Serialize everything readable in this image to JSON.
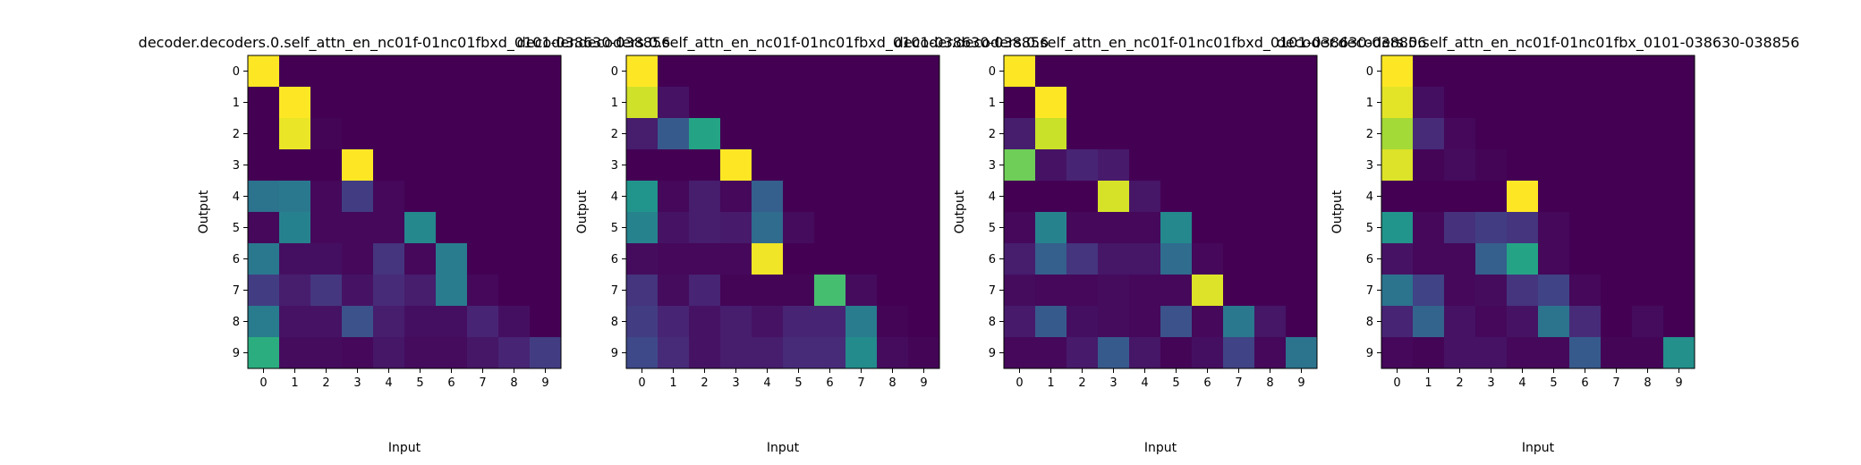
{
  "figure": {
    "colormap": "viridis",
    "colorscale": [
      "#440154",
      "#482878",
      "#3e4a89",
      "#31688e",
      "#26828e",
      "#1f9e89",
      "#35b779",
      "#6ece58",
      "#b5de2b",
      "#fde725"
    ],
    "xlabel": "Input",
    "ylabel": "Output"
  },
  "chart_data": [
    {
      "type": "heatmap",
      "title": "decoder.decoders.0.self_attn_en_nc01f-01nc01fbxd_0101-038630-038856",
      "xlabel": "Input",
      "ylabel": "Output",
      "x_ticks": [
        "0",
        "1",
        "2",
        "3",
        "4",
        "5",
        "6",
        "7",
        "8",
        "9"
      ],
      "y_ticks": [
        "0",
        "1",
        "2",
        "3",
        "4",
        "5",
        "6",
        "7",
        "8",
        "9"
      ],
      "values": [
        [
          1.0,
          0,
          0,
          0,
          0,
          0,
          0,
          0,
          0,
          0
        ],
        [
          0.0,
          1.0,
          0,
          0,
          0,
          0,
          0,
          0,
          0,
          0
        ],
        [
          0.0,
          0.97,
          0.01,
          0,
          0,
          0,
          0,
          0,
          0,
          0
        ],
        [
          0.0,
          0.0,
          0.0,
          1.0,
          0,
          0,
          0,
          0,
          0,
          0
        ],
        [
          0.38,
          0.4,
          0.02,
          0.18,
          0.02,
          0,
          0,
          0,
          0,
          0
        ],
        [
          0.02,
          0.44,
          0.02,
          0.02,
          0.02,
          0.47,
          0,
          0,
          0,
          0
        ],
        [
          0.4,
          0.04,
          0.04,
          0.02,
          0.15,
          0.02,
          0.42,
          0,
          0,
          0
        ],
        [
          0.18,
          0.08,
          0.16,
          0.05,
          0.12,
          0.08,
          0.42,
          0.02,
          0,
          0
        ],
        [
          0.42,
          0.05,
          0.05,
          0.25,
          0.08,
          0.04,
          0.04,
          0.1,
          0.04,
          0
        ],
        [
          0.62,
          0.03,
          0.03,
          0.02,
          0.06,
          0.03,
          0.03,
          0.06,
          0.1,
          0.18
        ]
      ]
    },
    {
      "type": "heatmap",
      "title": "decoder.decoders.0.self_attn_en_nc01f-01nc01fbxd_0101-038630-038856",
      "xlabel": "Input",
      "ylabel": "Output",
      "x_ticks": [
        "0",
        "1",
        "2",
        "3",
        "4",
        "5",
        "6",
        "7",
        "8",
        "9"
      ],
      "y_ticks": [
        "0",
        "1",
        "2",
        "3",
        "4",
        "5",
        "6",
        "7",
        "8",
        "9"
      ],
      "values": [
        [
          1.0,
          0,
          0,
          0,
          0,
          0,
          0,
          0,
          0,
          0
        ],
        [
          0.93,
          0.05,
          0,
          0,
          0,
          0,
          0,
          0,
          0,
          0
        ],
        [
          0.08,
          0.28,
          0.58,
          0,
          0,
          0,
          0,
          0,
          0,
          0
        ],
        [
          0.0,
          0.0,
          0.0,
          1.0,
          0,
          0,
          0,
          0,
          0,
          0
        ],
        [
          0.52,
          0.02,
          0.08,
          0.02,
          0.3,
          0,
          0,
          0,
          0,
          0
        ],
        [
          0.45,
          0.05,
          0.08,
          0.07,
          0.35,
          0.03,
          0,
          0,
          0,
          0
        ],
        [
          0.03,
          0.02,
          0.02,
          0.02,
          0.98,
          0.0,
          0.0,
          0,
          0,
          0
        ],
        [
          0.15,
          0.03,
          0.1,
          0.01,
          0.01,
          0.01,
          0.7,
          0.03,
          0,
          0
        ],
        [
          0.18,
          0.1,
          0.05,
          0.08,
          0.05,
          0.1,
          0.1,
          0.42,
          0.01,
          0
        ],
        [
          0.22,
          0.12,
          0.05,
          0.08,
          0.08,
          0.12,
          0.12,
          0.48,
          0.03,
          0.01
        ]
      ]
    },
    {
      "type": "heatmap",
      "title": "decoder.decoders.0.self_attn_en_nc01f-01nc01fbxd_0101-038630-038856",
      "xlabel": "Input",
      "ylabel": "Output",
      "x_ticks": [
        "0",
        "1",
        "2",
        "3",
        "4",
        "5",
        "6",
        "7",
        "8",
        "9"
      ],
      "y_ticks": [
        "0",
        "1",
        "2",
        "3",
        "4",
        "5",
        "6",
        "7",
        "8",
        "9"
      ],
      "values": [
        [
          1.0,
          0,
          0,
          0,
          0,
          0,
          0,
          0,
          0,
          0
        ],
        [
          0.0,
          1.0,
          0,
          0,
          0,
          0,
          0,
          0,
          0,
          0
        ],
        [
          0.08,
          0.92,
          0.0,
          0,
          0,
          0,
          0,
          0,
          0,
          0
        ],
        [
          0.78,
          0.05,
          0.1,
          0.07,
          0,
          0,
          0,
          0,
          0,
          0
        ],
        [
          0.0,
          0.0,
          0.0,
          0.94,
          0.06,
          0,
          0,
          0,
          0,
          0
        ],
        [
          0.02,
          0.45,
          0.02,
          0.02,
          0.02,
          0.47,
          0,
          0,
          0,
          0
        ],
        [
          0.08,
          0.3,
          0.15,
          0.06,
          0.06,
          0.35,
          0.02,
          0,
          0,
          0
        ],
        [
          0.03,
          0.02,
          0.02,
          0.03,
          0.02,
          0.02,
          0.95,
          0.0,
          0,
          0
        ],
        [
          0.07,
          0.28,
          0.04,
          0.03,
          0.02,
          0.25,
          0.02,
          0.4,
          0.06,
          0
        ],
        [
          0.02,
          0.02,
          0.07,
          0.28,
          0.06,
          0.01,
          0.04,
          0.2,
          0.02,
          0.38
        ]
      ]
    },
    {
      "type": "heatmap",
      "title": "decoder.decoders.0.self_attn_en_nc01f-01nc01fbx_0101-038630-038856",
      "xlabel": "Input",
      "ylabel": "Output",
      "x_ticks": [
        "0",
        "1",
        "2",
        "3",
        "4",
        "5",
        "6",
        "7",
        "8",
        "9"
      ],
      "y_ticks": [
        "0",
        "1",
        "2",
        "3",
        "4",
        "5",
        "6",
        "7",
        "8",
        "9"
      ],
      "values": [
        [
          1.0,
          0,
          0,
          0,
          0,
          0,
          0,
          0,
          0,
          0
        ],
        [
          0.96,
          0.04,
          0,
          0,
          0,
          0,
          0,
          0,
          0,
          0
        ],
        [
          0.86,
          0.12,
          0.02,
          0,
          0,
          0,
          0,
          0,
          0,
          0
        ],
        [
          0.95,
          0.01,
          0.03,
          0.01,
          0,
          0,
          0,
          0,
          0,
          0
        ],
        [
          0.0,
          0.0,
          0.0,
          0.0,
          1.0,
          0,
          0,
          0,
          0,
          0
        ],
        [
          0.52,
          0.02,
          0.14,
          0.18,
          0.15,
          0.02,
          0,
          0,
          0,
          0
        ],
        [
          0.05,
          0.02,
          0.02,
          0.3,
          0.58,
          0.02,
          0.0,
          0,
          0,
          0
        ],
        [
          0.38,
          0.2,
          0.02,
          0.03,
          0.15,
          0.2,
          0.02,
          0.0,
          0,
          0
        ],
        [
          0.1,
          0.32,
          0.05,
          0.02,
          0.05,
          0.38,
          0.12,
          0.0,
          0.03,
          0
        ],
        [
          0.02,
          0.01,
          0.05,
          0.05,
          0.02,
          0.02,
          0.28,
          0.01,
          0.01,
          0.5
        ]
      ]
    }
  ]
}
